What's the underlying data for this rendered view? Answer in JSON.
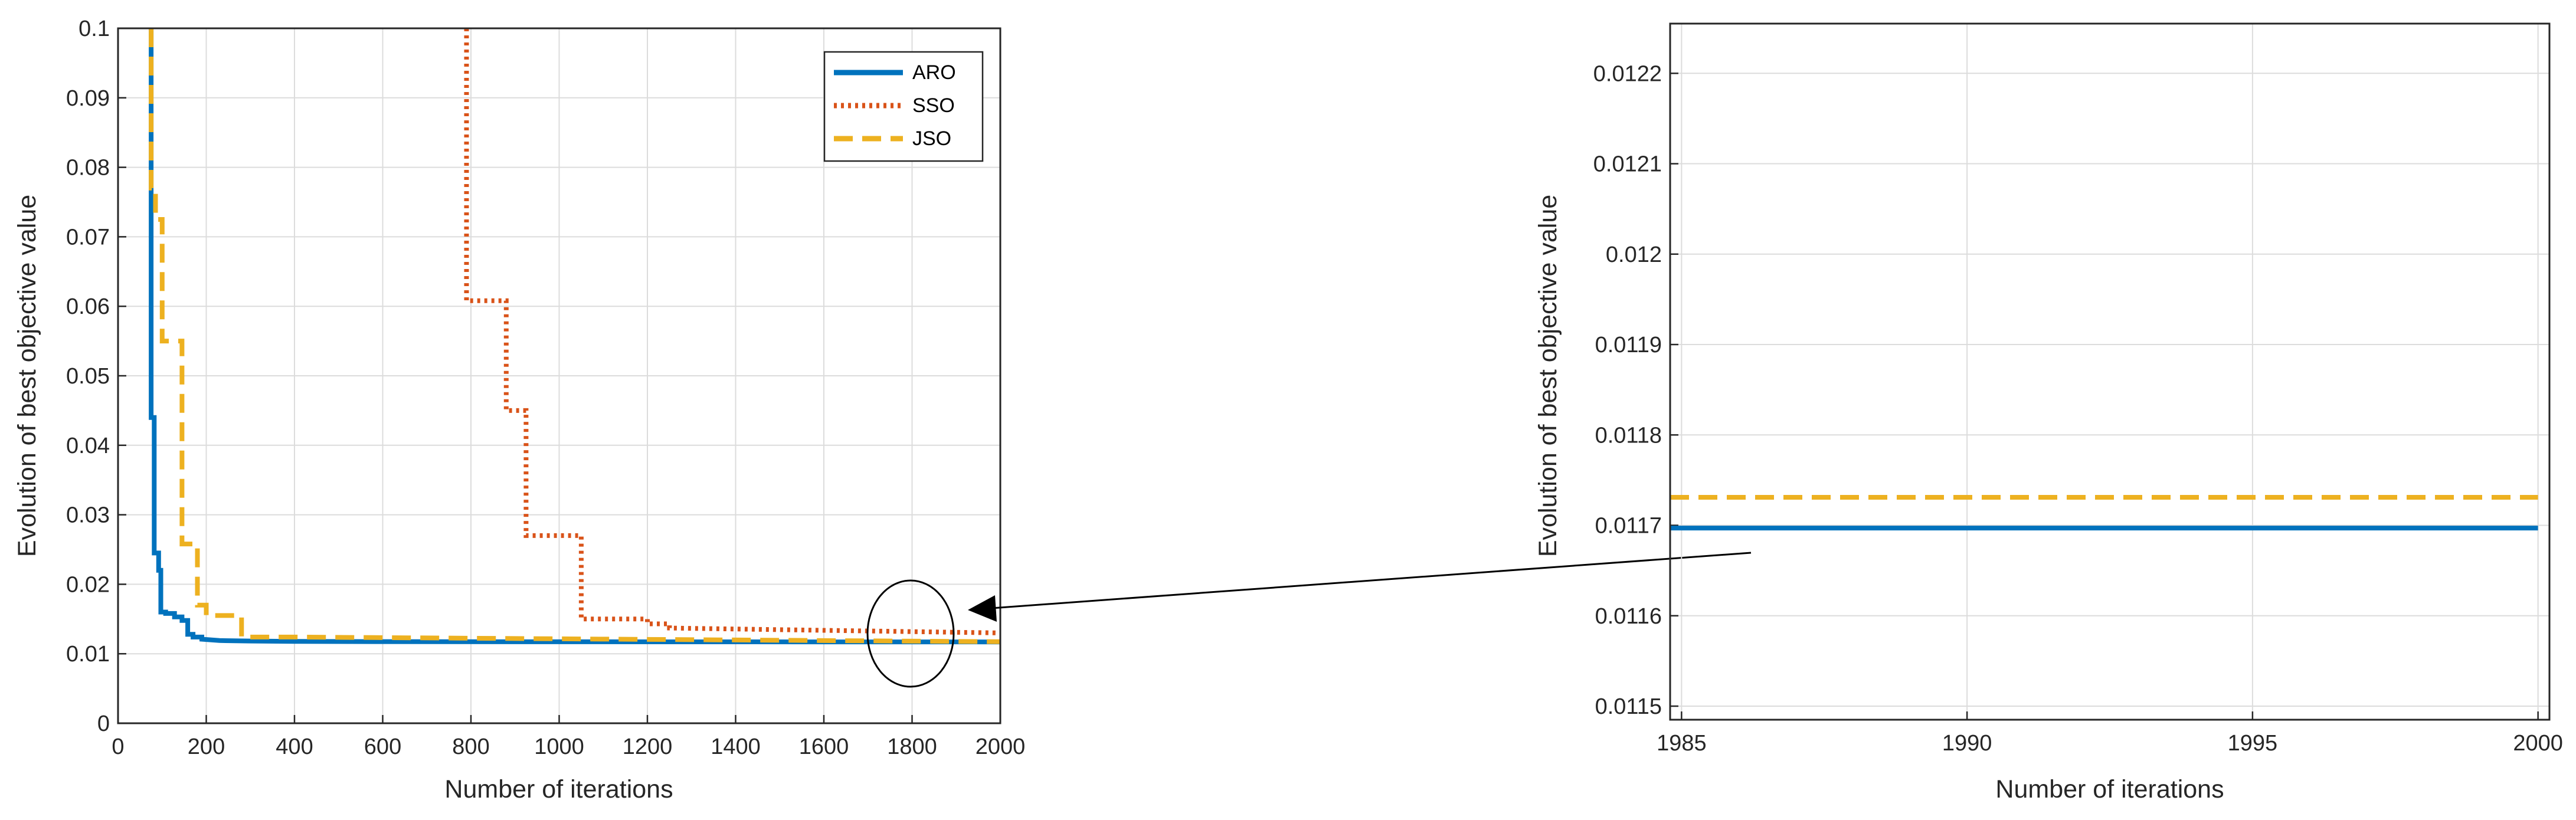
{
  "chart_data": [
    {
      "type": "line",
      "xlabel": "Number of iterations",
      "ylabel": "Evolution of best objective value",
      "xlim": [
        0,
        2000
      ],
      "ylim": [
        0,
        0.1
      ],
      "xticks": [
        "0",
        "200",
        "400",
        "600",
        "800",
        "1000",
        "1200",
        "1400",
        "1600",
        "1800",
        "2000"
      ],
      "yticks": [
        "0",
        "0.01",
        "0.02",
        "0.03",
        "0.04",
        "0.05",
        "0.06",
        "0.07",
        "0.08",
        "0.09",
        "0.1"
      ],
      "grid": true,
      "legend_position": "top-right",
      "series": [
        {
          "name": "ARO",
          "color": "#0072BD",
          "style": "solid",
          "x": [
            75,
            75,
            82,
            82,
            92,
            92,
            97,
            97,
            108,
            108,
            128,
            128,
            145,
            145,
            158,
            158,
            170,
            170,
            190,
            190,
            230,
            300,
            400,
            600,
            1000,
            2000
          ],
          "y": [
            0.1,
            0.044,
            0.044,
            0.0245,
            0.0245,
            0.022,
            0.022,
            0.016,
            0.016,
            0.0158,
            0.0158,
            0.0153,
            0.0153,
            0.0148,
            0.0148,
            0.0128,
            0.0128,
            0.0124,
            0.0124,
            0.0121,
            0.0119,
            0.01183,
            0.01178,
            0.01175,
            0.01172,
            0.0117
          ]
        },
        {
          "name": "SSO",
          "color": "#D95319",
          "style": "dotted",
          "x": [
            790,
            790,
            880,
            880,
            925,
            925,
            1050,
            1050,
            1200,
            1200,
            1250,
            1250,
            2000
          ],
          "y": [
            0.1,
            0.0608,
            0.0608,
            0.045,
            0.045,
            0.027,
            0.027,
            0.015,
            0.015,
            0.0143,
            0.0143,
            0.0137,
            0.013
          ]
        },
        {
          "name": "JSO",
          "color": "#EDB120",
          "style": "dashed",
          "x": [
            75,
            75,
            85,
            85,
            100,
            100,
            145,
            145,
            180,
            180,
            200,
            200,
            280,
            280,
            400,
            2000
          ],
          "y": [
            0.1,
            0.077,
            0.077,
            0.0725,
            0.0725,
            0.055,
            0.055,
            0.0258,
            0.0258,
            0.017,
            0.017,
            0.0155,
            0.0155,
            0.0124,
            0.0124,
            0.01173
          ]
        }
      ]
    },
    {
      "type": "line",
      "xlabel": "Number of iterations",
      "ylabel": "Evolution of best objective value",
      "xlim": [
        1984.8,
        2000.2
      ],
      "ylim": [
        0.011485,
        0.012255
      ],
      "xticks": [
        "1985",
        "1990",
        "1995",
        "2000"
      ],
      "yticks": [
        "0.0115",
        "0.0116",
        "0.0117",
        "0.0118",
        "0.0119",
        "0.012",
        "0.0121",
        "0.0122"
      ],
      "grid": true,
      "series": [
        {
          "name": "ARO",
          "color": "#0072BD",
          "style": "solid",
          "x": [
            1984.8,
            2000
          ],
          "y": [
            0.011697,
            0.011697
          ]
        },
        {
          "name": "JSO",
          "color": "#EDB120",
          "style": "dashed",
          "x": [
            1984.8,
            2000
          ],
          "y": [
            0.011731,
            0.011731
          ]
        }
      ]
    }
  ]
}
